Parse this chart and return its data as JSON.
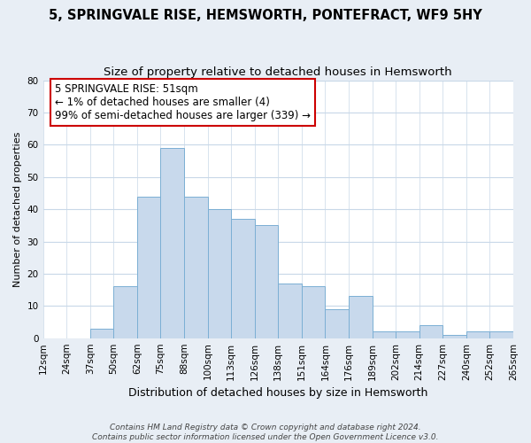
{
  "title": "5, SPRINGVALE RISE, HEMSWORTH, PONTEFRACT, WF9 5HY",
  "subtitle": "Size of property relative to detached houses in Hemsworth",
  "xlabel": "Distribution of detached houses by size in Hemsworth",
  "ylabel": "Number of detached properties",
  "bar_color": "#c8d9ec",
  "bar_edge_color": "#7bafd4",
  "bins": [
    "12sqm",
    "24sqm",
    "37sqm",
    "50sqm",
    "62sqm",
    "75sqm",
    "88sqm",
    "100sqm",
    "113sqm",
    "126sqm",
    "138sqm",
    "151sqm",
    "164sqm",
    "176sqm",
    "189sqm",
    "202sqm",
    "214sqm",
    "227sqm",
    "240sqm",
    "252sqm",
    "265sqm"
  ],
  "values": [
    0,
    0,
    3,
    16,
    44,
    59,
    44,
    40,
    37,
    35,
    17,
    16,
    9,
    13,
    2,
    2,
    4,
    1,
    2,
    2
  ],
  "ylim": [
    0,
    80
  ],
  "yticks": [
    0,
    10,
    20,
    30,
    40,
    50,
    60,
    70,
    80
  ],
  "annotation_title": "5 SPRINGVALE RISE: 51sqm",
  "annotation_line1": "← 1% of detached houses are smaller (4)",
  "annotation_line2": "99% of semi-detached houses are larger (339) →",
  "annotation_box_color": "#ffffff",
  "annotation_border_color": "#cc0000",
  "footer1": "Contains HM Land Registry data © Crown copyright and database right 2024.",
  "footer2": "Contains public sector information licensed under the Open Government Licence v3.0.",
  "background_color": "#e8eef5",
  "plot_bg_color": "#ffffff",
  "grid_color": "#c8d8e8",
  "title_fontsize": 10.5,
  "subtitle_fontsize": 9.5,
  "xlabel_fontsize": 9,
  "ylabel_fontsize": 8,
  "tick_fontsize": 7.5,
  "annotation_fontsize": 8.5,
  "footer_fontsize": 6.5
}
